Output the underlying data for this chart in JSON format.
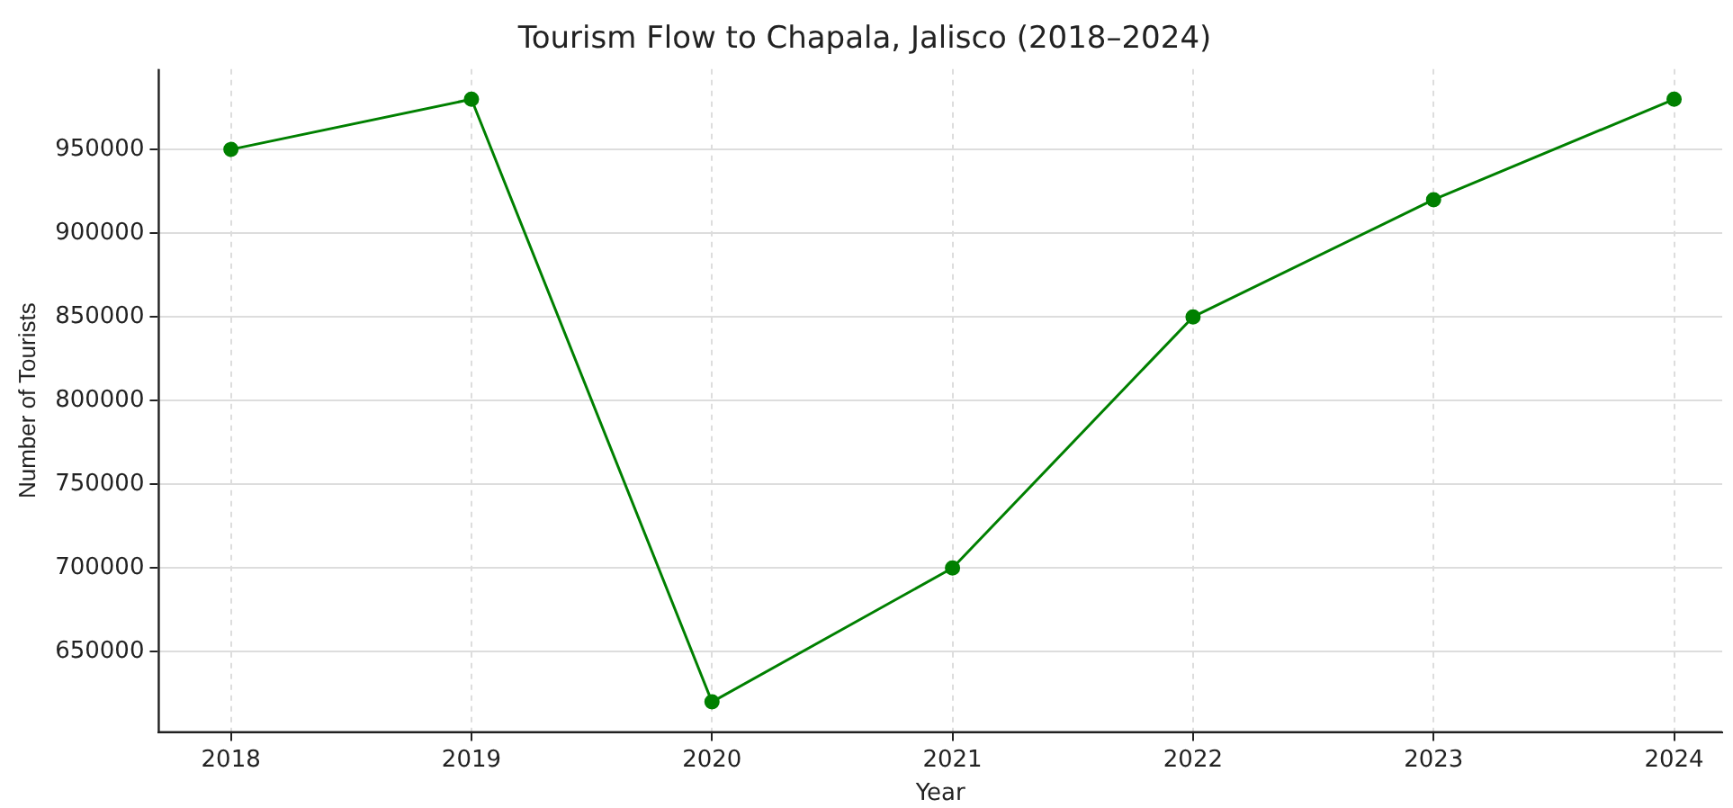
{
  "chart_data": {
    "type": "line",
    "title": "Tourism Flow to Chapala, Jalisco (2018–2024)",
    "xlabel": "Year",
    "ylabel": "Number of Tourists",
    "x": [
      2018,
      2019,
      2020,
      2021,
      2022,
      2023,
      2024
    ],
    "series": [
      {
        "color": "#008000",
        "values": [
          950000,
          980000,
          620000,
          700000,
          850000,
          920000,
          980000
        ]
      }
    ],
    "xlim": [
      2017.7,
      2024.2
    ],
    "xticks": [
      2018,
      2019,
      2020,
      2021,
      2022,
      2023,
      2024
    ],
    "ylim": [
      602000,
      998000
    ],
    "yticks": [
      650000,
      700000,
      750000,
      800000,
      850000,
      900000,
      950000
    ],
    "grid": true,
    "marker": "circle",
    "line_style": "solid",
    "legend": false
  }
}
